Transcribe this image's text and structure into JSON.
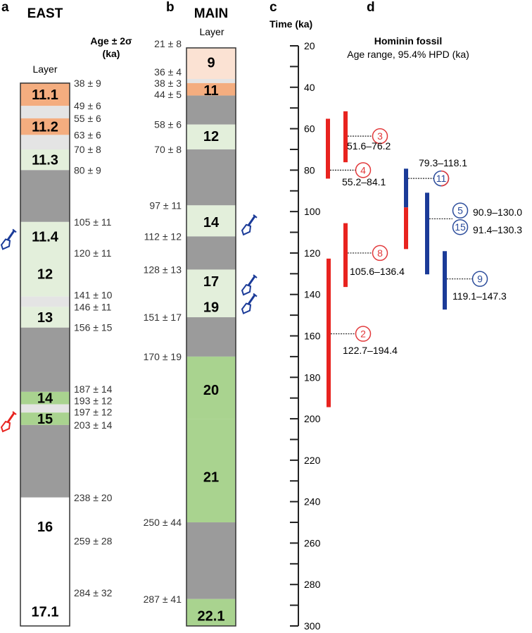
{
  "panels": {
    "a": "a",
    "b": "b",
    "c": "c",
    "d": "d"
  },
  "colors": {
    "peach": "#fbe2d3",
    "orange": "#f4ad7f",
    "lightgrey": "#e4e4e4",
    "lightgreen": "#e3efdb",
    "darkgrey": "#9b9b9b",
    "green": "#a9d38f",
    "white": "#ffffff",
    "red": "#e8231f",
    "blue": "#1b3b98",
    "red_text": "#e2383a",
    "blue_text": "#2b4c9b"
  },
  "east": {
    "title": "EAST",
    "layer_heading": "Layer",
    "age_heading_1": "Age ± 2σ",
    "age_heading_2": "(ka)",
    "layers": [
      {
        "top": 38,
        "bottom": 49,
        "color": "orange"
      },
      {
        "top": 49,
        "bottom": 55,
        "color": "lightgrey"
      },
      {
        "top": 55,
        "bottom": 63,
        "color": "orange"
      },
      {
        "top": 63,
        "bottom": 70,
        "color": "lightgrey"
      },
      {
        "top": 70,
        "bottom": 80,
        "color": "lightgreen"
      },
      {
        "top": 80,
        "bottom": 105,
        "color": "darkgrey"
      },
      {
        "top": 105,
        "bottom": 141,
        "color": "lightgreen"
      },
      {
        "top": 141,
        "bottom": 146,
        "color": "lightgrey"
      },
      {
        "top": 146,
        "bottom": 156,
        "color": "lightgreen"
      },
      {
        "top": 156,
        "bottom": 187,
        "color": "darkgrey"
      },
      {
        "top": 187,
        "bottom": 193,
        "color": "green"
      },
      {
        "top": 193,
        "bottom": 197,
        "color": "lightgrey"
      },
      {
        "top": 197,
        "bottom": 203,
        "color": "green"
      },
      {
        "top": 203,
        "bottom": 238,
        "color": "darkgrey"
      },
      {
        "top": 238,
        "bottom": 300,
        "color": "white"
      }
    ],
    "layer_labels": [
      {
        "text": "11.1",
        "at": 43.5
      },
      {
        "text": "11.2",
        "at": 59
      },
      {
        "text": "11.3",
        "at": 75
      },
      {
        "text": "11.4",
        "at": 112
      },
      {
        "text": "12",
        "at": 130
      },
      {
        "text": "13",
        "at": 151
      },
      {
        "text": "14",
        "at": 190
      },
      {
        "text": "15",
        "at": 200
      },
      {
        "text": "16",
        "at": 252
      },
      {
        "text": "17.1",
        "at": 293
      }
    ],
    "ages": [
      {
        "text": "38 ± 9",
        "age": 38
      },
      {
        "text": "49 ± 6",
        "age": 49
      },
      {
        "text": "55 ± 6",
        "age": 55
      },
      {
        "text": "63 ± 6",
        "age": 63
      },
      {
        "text": "70 ± 8",
        "age": 70
      },
      {
        "text": "80 ± 9",
        "age": 80
      },
      {
        "text": "105 ± 11",
        "age": 105
      },
      {
        "text": "120 ± 11",
        "age": 120
      },
      {
        "text": "141 ± 10",
        "age": 141
      },
      {
        "text": "146 ± 11",
        "age": 146
      },
      {
        "text": "156 ± 15",
        "age": 156
      },
      {
        "text": "187 ± 14",
        "age": 187
      },
      {
        "text": "193 ± 12",
        "age": 193
      },
      {
        "text": "197 ± 12",
        "age": 197
      },
      {
        "text": "203 ± 14",
        "age": 203
      },
      {
        "text": "238 ± 20",
        "age": 238
      },
      {
        "text": "259 ± 28",
        "age": 259
      },
      {
        "text": "284 ± 32",
        "age": 284
      }
    ],
    "fossil_markers": [
      {
        "at": 112,
        "color": "blue"
      },
      {
        "at": 200,
        "color": "red"
      }
    ]
  },
  "main": {
    "title": "MAIN",
    "layer_heading": "Layer",
    "layers": [
      {
        "top": 21,
        "bottom": 36,
        "color": "peach"
      },
      {
        "top": 36,
        "bottom": 38,
        "color": "lightgrey"
      },
      {
        "top": 38,
        "bottom": 44,
        "color": "orange"
      },
      {
        "top": 44,
        "bottom": 58,
        "color": "darkgrey"
      },
      {
        "top": 58,
        "bottom": 70,
        "color": "lightgreen"
      },
      {
        "top": 70,
        "bottom": 97,
        "color": "darkgrey"
      },
      {
        "top": 97,
        "bottom": 112,
        "color": "lightgreen"
      },
      {
        "top": 112,
        "bottom": 128,
        "color": "darkgrey"
      },
      {
        "top": 128,
        "bottom": 151,
        "color": "lightgreen"
      },
      {
        "top": 151,
        "bottom": 170,
        "color": "darkgrey"
      },
      {
        "top": 170,
        "bottom": 200,
        "color": "green"
      },
      {
        "top": 200,
        "bottom": 250,
        "color": "green"
      },
      {
        "top": 250,
        "bottom": 287,
        "color": "darkgrey"
      },
      {
        "top": 287,
        "bottom": 300,
        "color": "green"
      }
    ],
    "layer_labels": [
      {
        "text": "9",
        "at": 28
      },
      {
        "text": "11",
        "at": 41.5
      },
      {
        "text": "12",
        "at": 63.5
      },
      {
        "text": "14",
        "at": 105
      },
      {
        "text": "17",
        "at": 133.6
      },
      {
        "text": "19",
        "at": 146
      },
      {
        "text": "20",
        "at": 186
      },
      {
        "text": "21",
        "at": 228
      },
      {
        "text": "22.1",
        "at": 295
      }
    ],
    "ages": [
      {
        "text": "21 ± 8",
        "age": 19
      },
      {
        "text": "36 ± 4",
        "age": 35
      },
      {
        "text": "38 ± 3",
        "age": 38
      },
      {
        "text": "44 ± 5",
        "age": 43.5
      },
      {
        "text": "58 ± 6",
        "age": 58
      },
      {
        "text": "70 ± 8",
        "age": 70
      },
      {
        "text": "97 ± 11",
        "age": 97
      },
      {
        "text": "112 ± 12",
        "age": 112
      },
      {
        "text": "128 ± 13",
        "age": 128
      },
      {
        "text": "151 ± 17",
        "age": 151
      },
      {
        "text": "170 ± 19",
        "age": 170
      },
      {
        "text": "250 ± 44",
        "age": 250
      },
      {
        "text": "287 ± 41",
        "age": 287
      }
    ],
    "fossil_markers": [
      {
        "at": 105,
        "color": "blue"
      },
      {
        "at": 134,
        "color": "blue"
      },
      {
        "at": 143,
        "color": "blue"
      }
    ]
  },
  "chart_data": {
    "type": "range",
    "axis_title": "Time (ka)",
    "ylim": [
      20,
      300
    ],
    "ticks": [
      20,
      40,
      60,
      80,
      100,
      120,
      140,
      160,
      180,
      200,
      220,
      240,
      260,
      280,
      300
    ],
    "title": "Hominin fossil",
    "subtitle": "Age range, 95.4% HPD (ka)",
    "fossils": [
      {
        "ids": [
          "3"
        ],
        "min": 51.6,
        "max": 76.2,
        "color": "red",
        "range_text": "51.6–76.2"
      },
      {
        "ids": [
          "4"
        ],
        "min": 55.2,
        "max": 84.1,
        "color": "red",
        "range_text": "55.2–84.1"
      },
      {
        "ids": [
          "11"
        ],
        "min": 79.3,
        "max": 118.1,
        "color": "blue",
        "split_at": 98,
        "lower_color": "red",
        "range_text": "79.3–118.1"
      },
      {
        "ids": [
          "5",
          "15"
        ],
        "min": 90.9,
        "max": 130.3,
        "color": "blue",
        "range_texts": [
          "90.9–130.0",
          "91.4–130.3"
        ]
      },
      {
        "ids": [
          "8"
        ],
        "min": 105.6,
        "max": 136.4,
        "color": "red",
        "range_text": "105.6–136.4"
      },
      {
        "ids": [
          "9"
        ],
        "min": 119.1,
        "max": 147.3,
        "color": "blue",
        "range_text": "119.1–147.3"
      },
      {
        "ids": [
          "2"
        ],
        "min": 122.7,
        "max": 194.4,
        "color": "red",
        "range_text": "122.7–194.4"
      }
    ]
  }
}
